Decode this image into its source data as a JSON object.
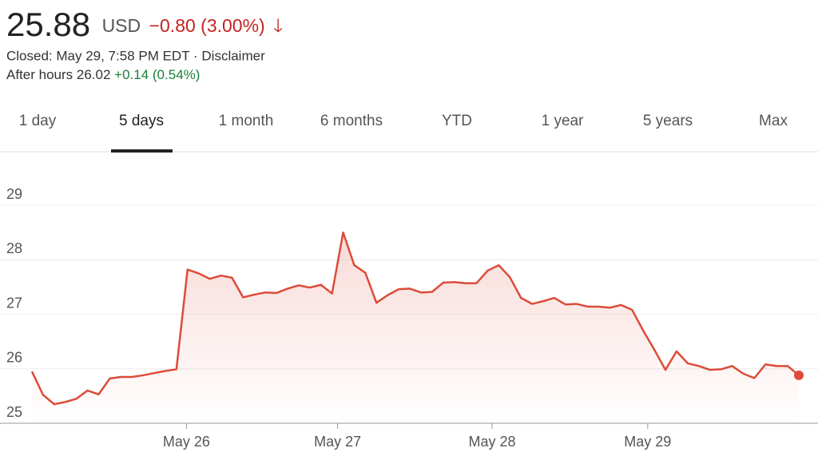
{
  "header": {
    "price": "25.88",
    "currency": "USD",
    "change": "−0.80 (3.00%)",
    "closed": "Closed: May 29, 7:58 PM EDT · Disclaimer",
    "after_hours_label": "After hours 26.02",
    "after_hours_change": "+0.14 (0.54%)"
  },
  "tabs": {
    "items": [
      "1 day",
      "5 days",
      "1 month",
      "6 months",
      "YTD",
      "1 year",
      "5 years",
      "Max"
    ],
    "selected": 1
  },
  "chart_data": {
    "type": "line",
    "color": "#dd4b39",
    "grid": true,
    "values": [
      25.95,
      25.52,
      25.35,
      25.39,
      25.45,
      25.6,
      25.53,
      25.82,
      25.85,
      25.85,
      25.88,
      25.92,
      25.96,
      25.99,
      27.82,
      27.75,
      27.65,
      27.71,
      27.67,
      27.31,
      27.36,
      27.4,
      27.39,
      27.47,
      27.53,
      27.49,
      27.54,
      27.38,
      28.5,
      27.9,
      27.76,
      27.21,
      27.35,
      27.46,
      27.47,
      27.4,
      27.41,
      27.58,
      27.59,
      27.57,
      27.57,
      27.8,
      27.9,
      27.68,
      27.3,
      27.19,
      27.24,
      27.3,
      27.18,
      27.19,
      27.14,
      27.14,
      27.12,
      27.17,
      27.08,
      26.7,
      26.35,
      25.98,
      26.32,
      26.1,
      26.05,
      25.98,
      25.99,
      26.05,
      25.91,
      25.83,
      26.08,
      26.05,
      26.05,
      25.88
    ],
    "xlim": [
      0,
      69
    ],
    "xticks": [
      {
        "value": 13.9,
        "label": "May 26"
      },
      {
        "value": 27.5,
        "label": "May 27"
      },
      {
        "value": 41.4,
        "label": "May 28"
      },
      {
        "value": 55.4,
        "label": "May 29"
      }
    ],
    "ylim": [
      25,
      29
    ],
    "yticks": [
      25,
      26,
      27,
      28,
      29
    ]
  }
}
